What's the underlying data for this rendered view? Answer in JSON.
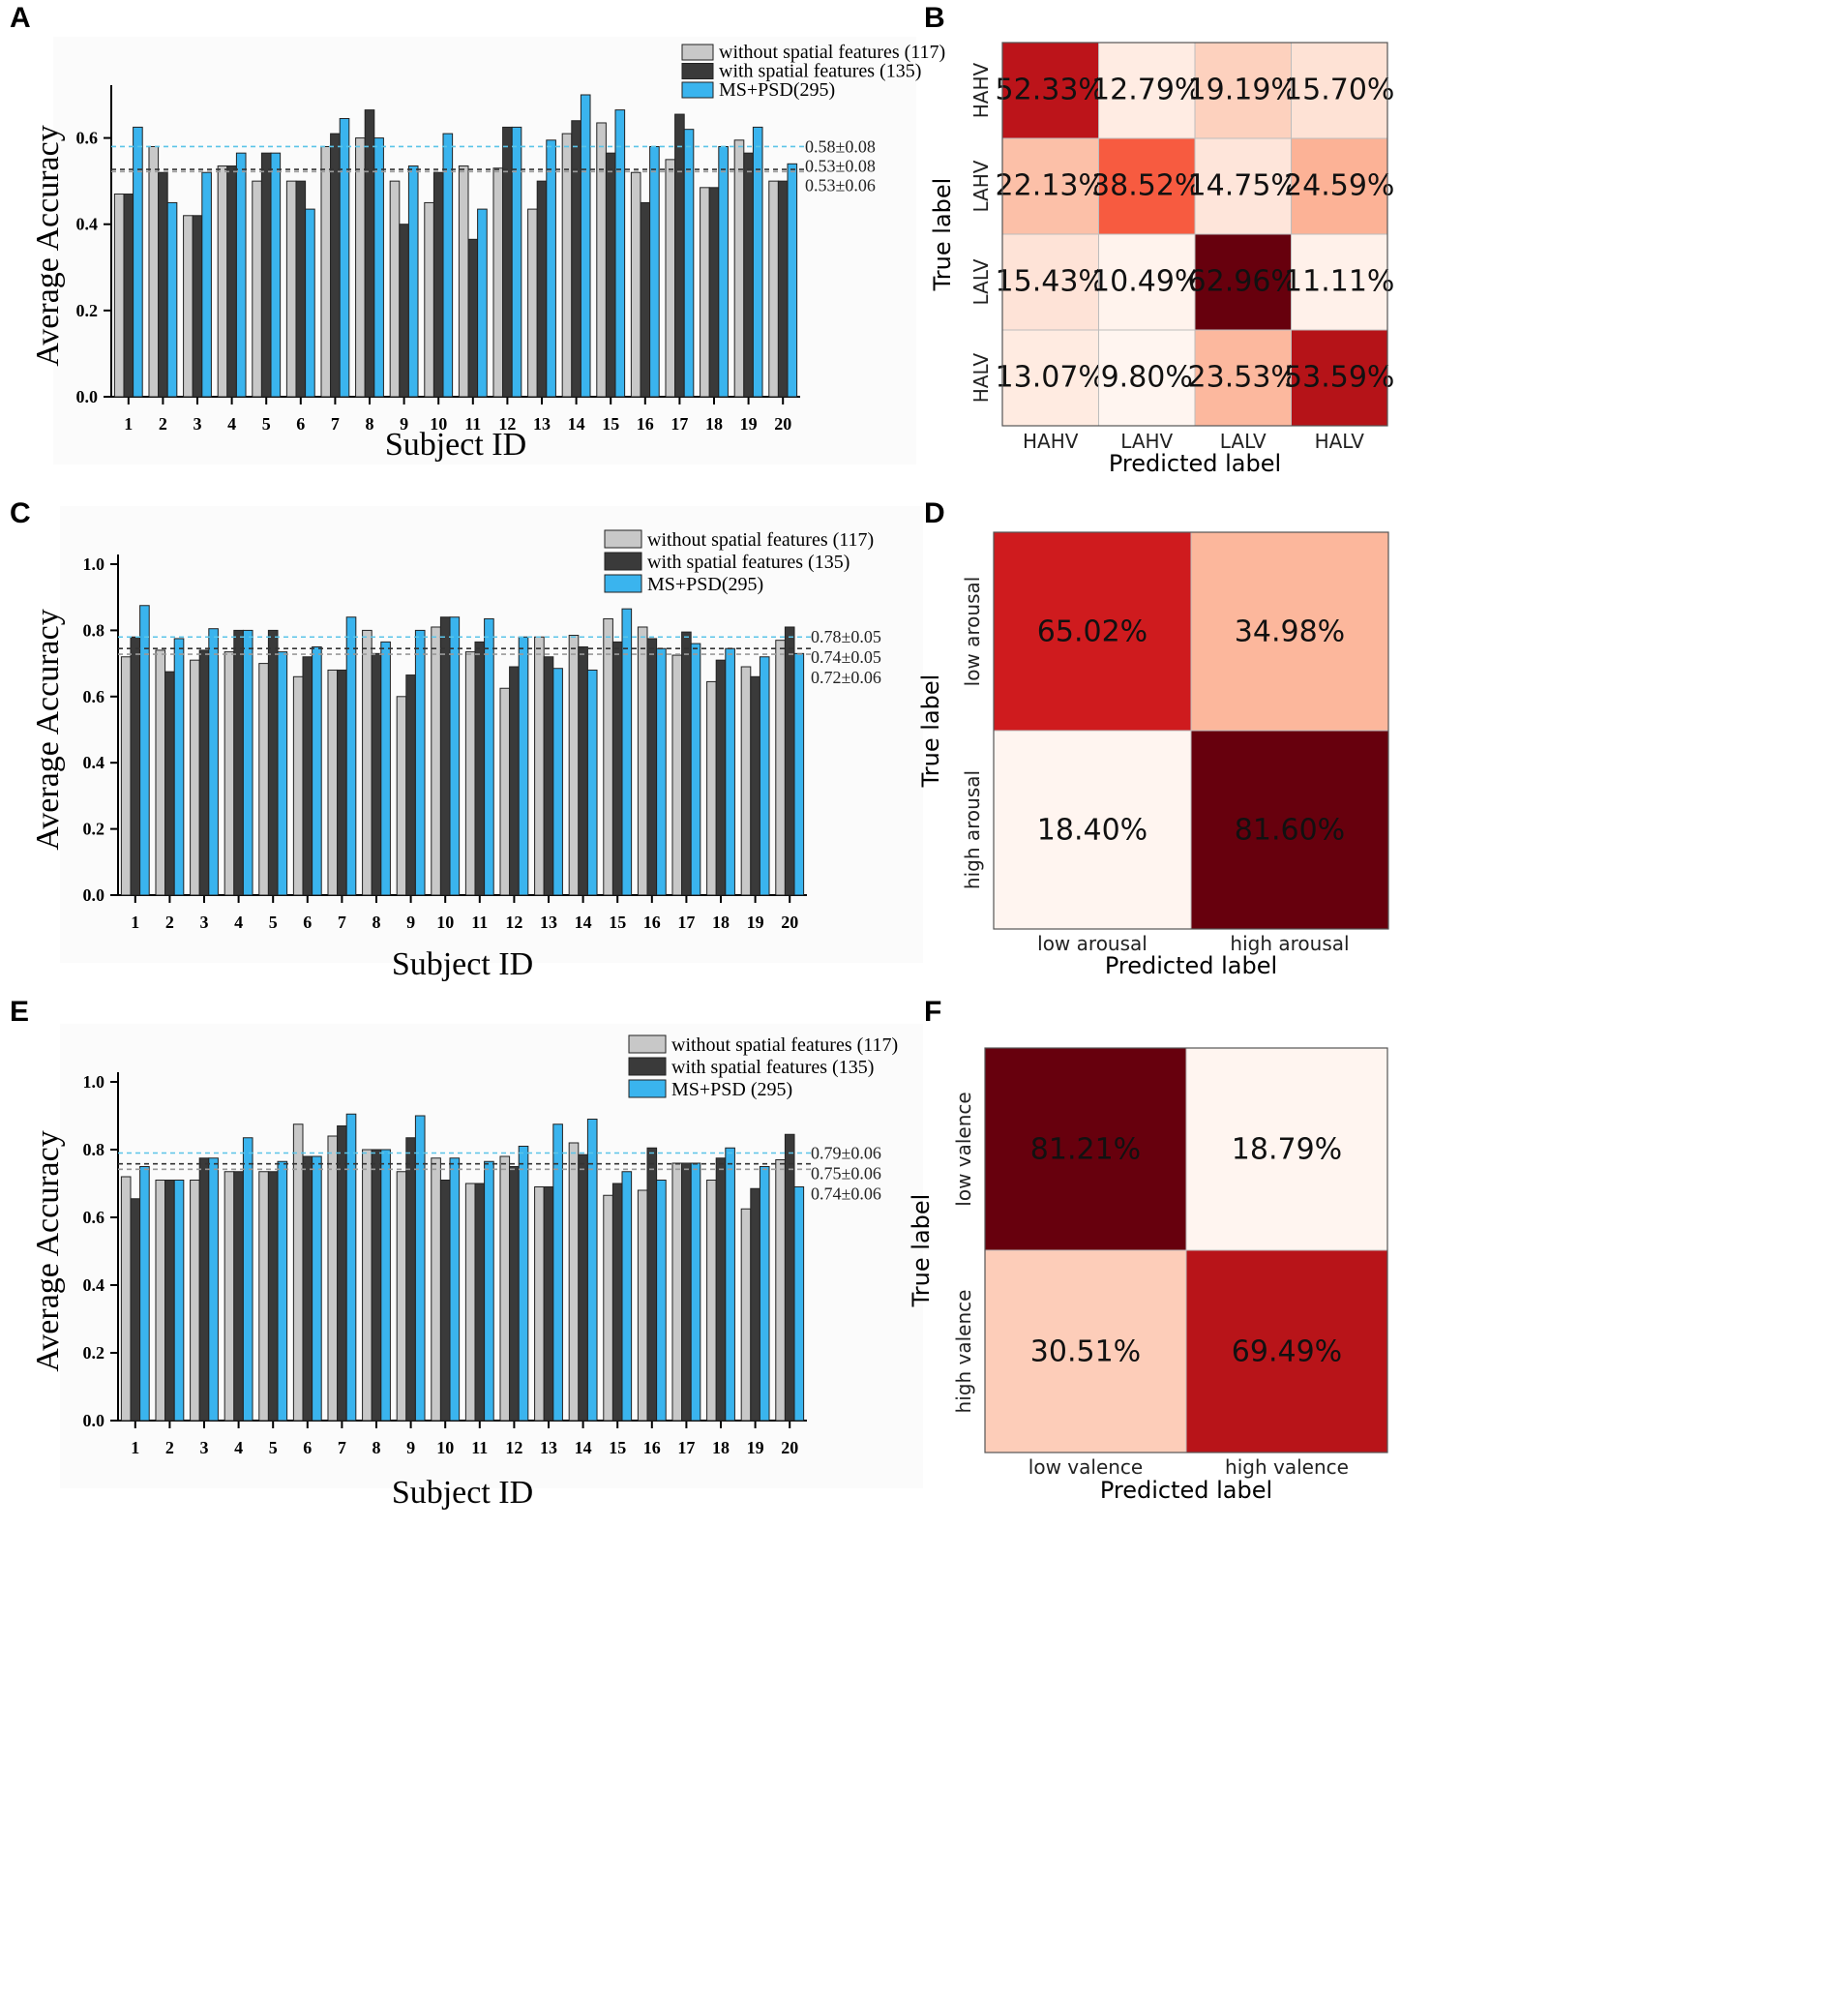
{
  "colors": {
    "without": "#c8c8c8",
    "with": "#3a3a3a",
    "mspsd": "#3ab4ee",
    "mean_without": "#999999",
    "mean_with": "#333333",
    "mean_mspsd": "#5bc4e8",
    "cm_low": "#fff5f0",
    "cm_high": "#67000d"
  },
  "chart_data": [
    {
      "id": "A",
      "type": "bar",
      "panel_label": "A",
      "xlabel": "Subject ID",
      "ylabel": "Average Accuracy",
      "ylim": [
        0,
        0.7
      ],
      "yticks": [
        "0.0",
        "0.2",
        "0.4",
        "0.6"
      ],
      "ytick_values": [
        0,
        0.2,
        0.4,
        0.6
      ],
      "categories": [
        "1",
        "2",
        "3",
        "4",
        "5",
        "6",
        "7",
        "8",
        "9",
        "10",
        "11",
        "12",
        "13",
        "14",
        "15",
        "16",
        "17",
        "18",
        "19",
        "20"
      ],
      "series": [
        {
          "name": "without spatial features (117)",
          "key": "without",
          "values": [
            0.47,
            0.58,
            0.42,
            0.535,
            0.5,
            0.5,
            0.58,
            0.6,
            0.5,
            0.45,
            0.535,
            0.53,
            0.435,
            0.61,
            0.635,
            0.52,
            0.55,
            0.485,
            0.595,
            0.5
          ]
        },
        {
          "name": "with spatial features (135)",
          "key": "with",
          "values": [
            0.47,
            0.52,
            0.42,
            0.535,
            0.565,
            0.5,
            0.61,
            0.665,
            0.4,
            0.52,
            0.365,
            0.625,
            0.5,
            0.64,
            0.565,
            0.45,
            0.655,
            0.485,
            0.565,
            0.5
          ]
        },
        {
          "name": "MS+PSD(295)",
          "key": "mspsd",
          "values": [
            0.625,
            0.45,
            0.52,
            0.565,
            0.565,
            0.435,
            0.645,
            0.6,
            0.535,
            0.61,
            0.435,
            0.625,
            0.595,
            0.7,
            0.665,
            0.58,
            0.62,
            0.58,
            0.625,
            0.54
          ]
        }
      ],
      "means": [
        {
          "label": "0.58±0.08",
          "value": 0.58,
          "key": "mspsd"
        },
        {
          "label": "0.53±0.08",
          "value": 0.527,
          "key": "with"
        },
        {
          "label": "0.53±0.06",
          "value": 0.522,
          "key": "without"
        }
      ]
    },
    {
      "id": "C",
      "type": "bar",
      "panel_label": "C",
      "xlabel": "Subject ID",
      "ylabel": "Average Accuracy",
      "ylim": [
        0,
        1.0
      ],
      "yticks": [
        "0.0",
        "0.2",
        "0.4",
        "0.6",
        "0.8",
        "1.0"
      ],
      "ytick_values": [
        0,
        0.2,
        0.4,
        0.6,
        0.8,
        1.0
      ],
      "categories": [
        "1",
        "2",
        "3",
        "4",
        "5",
        "6",
        "7",
        "8",
        "9",
        "10",
        "11",
        "12",
        "13",
        "14",
        "15",
        "16",
        "17",
        "18",
        "19",
        "20"
      ],
      "series": [
        {
          "name": "without spatial features (117)",
          "key": "without",
          "values": [
            0.72,
            0.74,
            0.71,
            0.735,
            0.7,
            0.66,
            0.68,
            0.8,
            0.6,
            0.81,
            0.735,
            0.625,
            0.78,
            0.785,
            0.835,
            0.81,
            0.725,
            0.645,
            0.69,
            0.77
          ]
        },
        {
          "name": "with spatial features (135)",
          "key": "with",
          "values": [
            0.78,
            0.675,
            0.74,
            0.8,
            0.8,
            0.72,
            0.68,
            0.73,
            0.665,
            0.84,
            0.765,
            0.69,
            0.72,
            0.75,
            0.765,
            0.775,
            0.795,
            0.71,
            0.66,
            0.81
          ]
        },
        {
          "name": "MS+PSD(295)",
          "key": "mspsd",
          "values": [
            0.875,
            0.775,
            0.805,
            0.8,
            0.735,
            0.75,
            0.84,
            0.765,
            0.8,
            0.84,
            0.835,
            0.78,
            0.685,
            0.68,
            0.865,
            0.745,
            0.76,
            0.745,
            0.72,
            0.73
          ]
        }
      ],
      "means": [
        {
          "label": "0.78±0.05",
          "value": 0.78,
          "key": "mspsd"
        },
        {
          "label": "0.74±0.05",
          "value": 0.745,
          "key": "with"
        },
        {
          "label": "0.72±0.06",
          "value": 0.728,
          "key": "without"
        }
      ]
    },
    {
      "id": "E",
      "type": "bar",
      "panel_label": "E",
      "xlabel": "Subject ID",
      "ylabel": "Average Accuracy",
      "ylim": [
        0,
        1.0
      ],
      "yticks": [
        "0.0",
        "0.2",
        "0.4",
        "0.6",
        "0.8",
        "1.0"
      ],
      "ytick_values": [
        0,
        0.2,
        0.4,
        0.6,
        0.8,
        1.0
      ],
      "categories": [
        "1",
        "2",
        "3",
        "4",
        "5",
        "6",
        "7",
        "8",
        "9",
        "10",
        "11",
        "12",
        "13",
        "14",
        "15",
        "16",
        "17",
        "18",
        "19",
        "20"
      ],
      "series": [
        {
          "name": "without spatial features (117)",
          "key": "without",
          "values": [
            0.72,
            0.71,
            0.71,
            0.735,
            0.735,
            0.875,
            0.84,
            0.8,
            0.735,
            0.775,
            0.7,
            0.78,
            0.69,
            0.82,
            0.665,
            0.68,
            0.76,
            0.71,
            0.625,
            0.77
          ]
        },
        {
          "name": "with spatial features (135)",
          "key": "with",
          "values": [
            0.655,
            0.71,
            0.775,
            0.735,
            0.735,
            0.78,
            0.87,
            0.8,
            0.835,
            0.71,
            0.7,
            0.75,
            0.69,
            0.785,
            0.7,
            0.805,
            0.76,
            0.775,
            0.685,
            0.845
          ]
        },
        {
          "name": "MS+PSD (295)",
          "key": "mspsd",
          "values": [
            0.75,
            0.71,
            0.775,
            0.835,
            0.765,
            0.78,
            0.905,
            0.8,
            0.9,
            0.775,
            0.765,
            0.81,
            0.875,
            0.89,
            0.735,
            0.71,
            0.76,
            0.805,
            0.75,
            0.69
          ]
        }
      ],
      "means": [
        {
          "label": "0.79±0.06",
          "value": 0.79,
          "key": "mspsd"
        },
        {
          "label": "0.75±0.06",
          "value": 0.758,
          "key": "with"
        },
        {
          "label": "0.74±0.06",
          "value": 0.742,
          "key": "without"
        }
      ]
    },
    {
      "id": "B",
      "type": "heatmap",
      "panel_label": "B",
      "xlabel": "Predicted label",
      "ylabel": "True label",
      "x_ticks": [
        "HAHV",
        "LAHV",
        "LALV",
        "HALV"
      ],
      "y_ticks": [
        "HAHV",
        "LAHV",
        "LALV",
        "HALV"
      ],
      "values": [
        [
          52.33,
          12.79,
          19.19,
          15.7
        ],
        [
          22.13,
          38.52,
          14.75,
          24.59
        ],
        [
          15.43,
          10.49,
          62.96,
          11.11
        ],
        [
          13.07,
          9.8,
          23.53,
          53.59
        ]
      ],
      "labels": [
        [
          "52.33%",
          "12.79%",
          "19.19%",
          "15.70%"
        ],
        [
          "22.13%",
          "38.52%",
          "14.75%",
          "24.59%"
        ],
        [
          "15.43%",
          "10.49%",
          "62.96%",
          "11.11%"
        ],
        [
          "13.07%",
          "9.80%",
          "23.53%",
          "53.59%"
        ]
      ],
      "vmin": 9.8,
      "vmax": 62.96
    },
    {
      "id": "D",
      "type": "heatmap",
      "panel_label": "D",
      "xlabel": "Predicted label",
      "ylabel": "True label",
      "x_ticks": [
        "low arousal",
        "high arousal"
      ],
      "y_ticks": [
        "low arousal",
        "high arousal"
      ],
      "values": [
        [
          65.02,
          34.98
        ],
        [
          18.4,
          81.6
        ]
      ],
      "labels": [
        [
          "65.02%",
          "34.98%"
        ],
        [
          "18.40%",
          "81.60%"
        ]
      ],
      "vmin": 18.4,
      "vmax": 81.6
    },
    {
      "id": "F",
      "type": "heatmap",
      "panel_label": "F",
      "xlabel": "Predicted label",
      "ylabel": "True label",
      "x_ticks": [
        "low valence",
        "high valence"
      ],
      "y_ticks": [
        "low valence",
        "high valence"
      ],
      "values": [
        [
          81.21,
          18.79
        ],
        [
          30.51,
          69.49
        ]
      ],
      "labels": [
        [
          "81.21%",
          "18.79%"
        ],
        [
          "30.51%",
          "69.49%"
        ]
      ],
      "vmin": 18.79,
      "vmax": 81.21
    }
  ]
}
